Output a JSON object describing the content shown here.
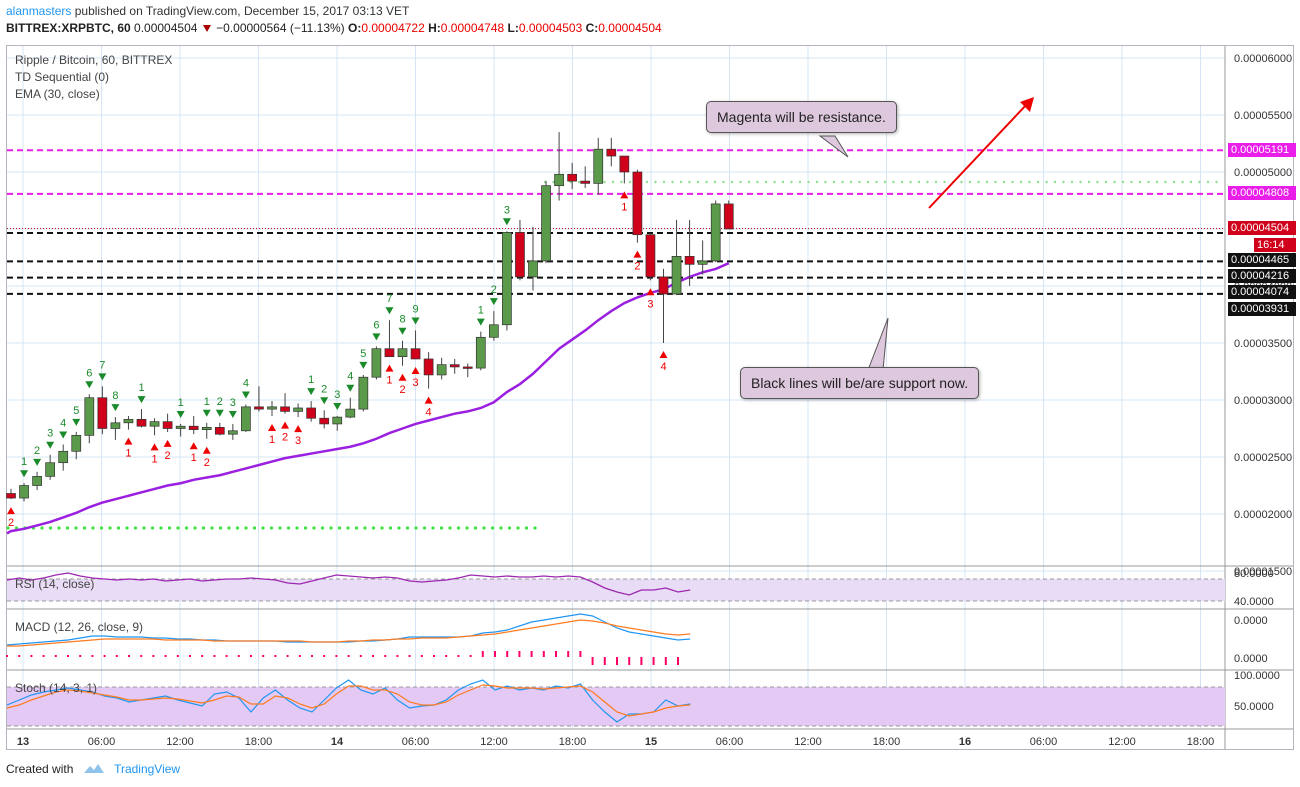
{
  "header": {
    "author": "alanmasters",
    "published": "published on TradingView.com, December 15, 2017 03:13 VET",
    "symbol": "BITTREX:XRPBTC, 60",
    "last": "0.00004504",
    "change": "−0.00000564 (−11.13%)",
    "o_label": "O:",
    "o_value": "0.00004722",
    "h_label": "H:",
    "h_value": "0.00004748",
    "l_label": "L:",
    "l_value": "0.00004503",
    "c_label": "C:",
    "c_value": "0.00004504"
  },
  "legend": {
    "title": "Ripple / Bitcoin, 60, BITTREX",
    "td": "TD Sequential (0)",
    "ema": "EMA (30, close)",
    "rsi": "RSI (14, close)",
    "macd": "MACD (12, 26, close, 9)",
    "stoch": "Stoch (14, 3, 1)"
  },
  "annotations": {
    "resistance": "Magenta will be resistance.",
    "support": "Black lines will be/are support now."
  },
  "price_labels": {
    "magenta_top": "0.00005191",
    "magenta_bottom": "0.00004808",
    "last": "0.00004504",
    "countdown": "16:14",
    "black_1": "0.00004465",
    "black_2": "0.00004216",
    "black_3": "0.00004074",
    "black_4": "0.00003931"
  },
  "footer": {
    "created": "Created with",
    "brand": "TradingView"
  },
  "colors": {
    "up": "#6ba583",
    "up_body": "#5b9a4a",
    "down": "#d0021b",
    "ema": "#9b1fe0",
    "magenta": "#e91ee9",
    "green_dots": "#3ee03e",
    "grid": "#d6e4f5",
    "macd": "#2196f3",
    "signal": "#ff7b1f",
    "rsi": "#9c27b0",
    "stoch_k": "#2196f3",
    "stoch_d": "#ff7b1f"
  },
  "chart_data": {
    "type": "candlestick",
    "title": "Ripple / Bitcoin, 60, BITTREX",
    "price_axis": {
      "ticks": [
        "0.00006000",
        "0.00005500",
        "0.00005000",
        "0.00004500",
        "0.00004000",
        "0.00003500",
        "0.00003000",
        "0.00002500",
        "0.00002000",
        "0.00001500"
      ],
      "range": [
        1.5e-05,
        6.2e-05
      ]
    },
    "time_axis": {
      "labels": [
        "13",
        "06:00",
        "12:00",
        "18:00",
        "14",
        "06:00",
        "12:00",
        "18:00",
        "15",
        "06:00",
        "12:00",
        "18:00",
        "16",
        "06:00",
        "12:00",
        "18:00"
      ],
      "bold": [
        "13",
        "14",
        "15",
        "16"
      ]
    },
    "candles": [
      [
        2.18,
        2.22,
        2.13,
        2.14
      ],
      [
        2.14,
        2.27,
        2.11,
        2.25
      ],
      [
        2.25,
        2.37,
        2.21,
        2.33
      ],
      [
        2.33,
        2.52,
        2.3,
        2.45
      ],
      [
        2.45,
        2.61,
        2.38,
        2.55
      ],
      [
        2.55,
        2.72,
        2.48,
        2.69
      ],
      [
        2.69,
        3.05,
        2.62,
        3.02
      ],
      [
        3.02,
        3.12,
        2.7,
        2.75
      ],
      [
        2.75,
        2.85,
        2.65,
        2.8
      ],
      [
        2.8,
        2.86,
        2.74,
        2.83
      ],
      [
        2.83,
        2.92,
        2.76,
        2.77
      ],
      [
        2.77,
        2.84,
        2.69,
        2.81
      ],
      [
        2.81,
        2.88,
        2.72,
        2.75
      ],
      [
        2.75,
        2.79,
        2.68,
        2.77
      ],
      [
        2.77,
        2.86,
        2.7,
        2.74
      ],
      [
        2.74,
        2.8,
        2.66,
        2.76
      ],
      [
        2.76,
        2.8,
        2.69,
        2.7
      ],
      [
        2.7,
        2.79,
        2.65,
        2.73
      ],
      [
        2.73,
        2.96,
        2.72,
        2.94
      ],
      [
        2.94,
        3.12,
        2.9,
        2.92
      ],
      [
        2.92,
        2.99,
        2.86,
        2.94
      ],
      [
        2.94,
        3.06,
        2.88,
        2.9
      ],
      [
        2.9,
        2.97,
        2.85,
        2.93
      ],
      [
        2.93,
        2.99,
        2.81,
        2.84
      ],
      [
        2.84,
        2.91,
        2.75,
        2.79
      ],
      [
        2.79,
        2.86,
        2.73,
        2.85
      ],
      [
        2.85,
        3.02,
        2.84,
        2.92
      ],
      [
        2.92,
        3.22,
        2.9,
        3.2
      ],
      [
        3.2,
        3.47,
        3.18,
        3.45
      ],
      [
        3.45,
        3.7,
        3.38,
        3.38
      ],
      [
        3.38,
        3.52,
        3.3,
        3.45
      ],
      [
        3.45,
        3.61,
        3.36,
        3.36
      ],
      [
        3.36,
        3.42,
        3.1,
        3.22
      ],
      [
        3.22,
        3.37,
        3.18,
        3.31
      ],
      [
        3.31,
        3.36,
        3.23,
        3.29
      ],
      [
        3.29,
        3.32,
        3.2,
        3.28
      ],
      [
        3.28,
        3.6,
        3.26,
        3.55
      ],
      [
        3.55,
        3.78,
        3.52,
        3.66
      ],
      [
        3.66,
        4.48,
        3.61,
        4.47
      ],
      [
        4.47,
        4.58,
        4.05,
        4.08
      ],
      [
        4.08,
        4.52,
        3.96,
        4.22
      ],
      [
        4.22,
        4.92,
        4.2,
        4.88
      ],
      [
        4.88,
        5.35,
        4.75,
        4.98
      ],
      [
        4.98,
        5.08,
        4.85,
        4.92
      ],
      [
        4.92,
        5.05,
        4.86,
        4.9
      ],
      [
        4.9,
        5.3,
        4.8,
        5.2
      ],
      [
        5.2,
        5.3,
        5.05,
        5.14
      ],
      [
        5.14,
        5.12,
        4.9,
        5.0
      ],
      [
        5.0,
        5.02,
        4.38,
        4.45
      ],
      [
        4.45,
        4.46,
        4.05,
        4.08
      ],
      [
        4.08,
        4.15,
        3.5,
        3.93
      ],
      [
        3.93,
        4.58,
        3.92,
        4.26
      ],
      [
        4.26,
        4.58,
        4.0,
        4.19
      ],
      [
        4.19,
        4.4,
        4.1,
        4.22
      ],
      [
        4.22,
        4.75,
        4.21,
        4.72
      ],
      [
        4.72,
        4.75,
        4.5,
        4.5
      ]
    ],
    "candles_unit": "1e-5 BTC [open, high, low, close]",
    "ema30": [
      1.85,
      1.87,
      1.9,
      1.93,
      1.97,
      2.01,
      2.06,
      2.1,
      2.13,
      2.16,
      2.19,
      2.22,
      2.25,
      2.27,
      2.3,
      2.32,
      2.34,
      2.37,
      2.4,
      2.43,
      2.46,
      2.49,
      2.51,
      2.53,
      2.55,
      2.57,
      2.59,
      2.62,
      2.66,
      2.71,
      2.75,
      2.79,
      2.82,
      2.85,
      2.88,
      2.9,
      2.93,
      2.98,
      3.07,
      3.14,
      3.23,
      3.34,
      3.45,
      3.53,
      3.61,
      3.7,
      3.78,
      3.85,
      3.9,
      3.94,
      3.97,
      4.03,
      4.08,
      4.12,
      4.15,
      4.2
    ],
    "levels": {
      "magenta": [
        5.191e-05,
        4.808e-05
      ],
      "black_support": [
        4.465e-05,
        4.216e-05,
        4.074e-05,
        3.931e-05
      ]
    },
    "rsi": {
      "label": "RSI (14, close)",
      "ticks": [
        "80.0000",
        "40.0000"
      ]
    },
    "macd": {
      "label": "MACD (12, 26, close, 9)",
      "ticks": [
        "0.0000",
        "0.0000"
      ]
    },
    "stoch": {
      "label": "Stoch (14, 3, 1)",
      "ticks": [
        "100.0000",
        "50.0000"
      ]
    },
    "td_labels": {
      "buy_setup": [
        "1",
        "2",
        "3",
        "4",
        "5",
        "6",
        "7",
        "8",
        "1",
        "1",
        "1",
        "2",
        "3",
        "4",
        "1",
        "2",
        "3",
        "4",
        "5",
        "6",
        "7",
        "8",
        "9",
        "1",
        "2",
        "3"
      ],
      "sell_setup": [
        "2",
        "1",
        "1",
        "2",
        "1",
        "2",
        "1",
        "2",
        "3",
        "1",
        "2",
        "3",
        "4",
        "1",
        "2",
        "3",
        "4"
      ]
    }
  }
}
